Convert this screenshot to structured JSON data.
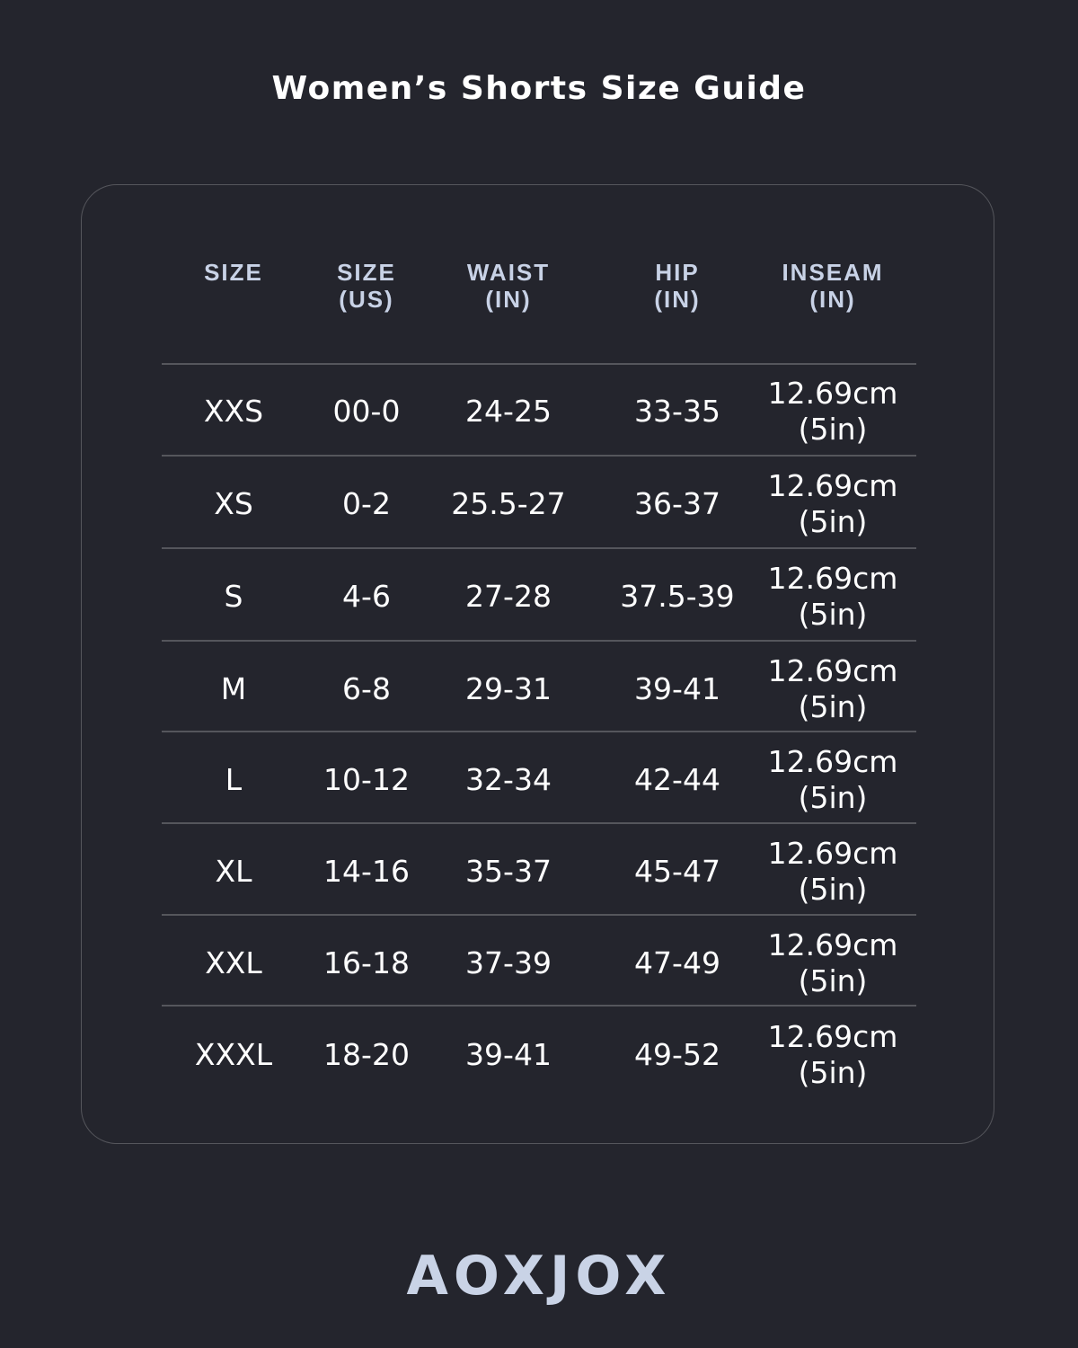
{
  "title": "Women’s Shorts Size Guide",
  "headers": [
    {
      "line1": "SIZE",
      "line2": ""
    },
    {
      "line1": "SIZE",
      "line2": "(US)"
    },
    {
      "line1": "WAIST",
      "line2": "(IN)"
    },
    {
      "line1": "HIP",
      "line2": "(IN)"
    },
    {
      "line1": "INSEAM",
      "line2": "(IN)"
    }
  ],
  "rows": [
    {
      "size": "XXS",
      "us": "00-0",
      "waist": "24-25",
      "hip": "33-35",
      "inseam_cm": "12.69cm",
      "inseam_in": "(5in)"
    },
    {
      "size": "XS",
      "us": "0-2",
      "waist": "25.5-27",
      "hip": "36-37",
      "inseam_cm": "12.69cm",
      "inseam_in": "(5in)"
    },
    {
      "size": "S",
      "us": "4-6",
      "waist": "27-28",
      "hip": "37.5-39",
      "inseam_cm": "12.69cm",
      "inseam_in": "(5in)"
    },
    {
      "size": "M",
      "us": "6-8",
      "waist": "29-31",
      "hip": "39-41",
      "inseam_cm": "12.69cm",
      "inseam_in": "(5in)"
    },
    {
      "size": "L",
      "us": "10-12",
      "waist": "32-34",
      "hip": "42-44",
      "inseam_cm": "12.69cm",
      "inseam_in": "(5in)"
    },
    {
      "size": "XL",
      "us": "14-16",
      "waist": "35-37",
      "hip": "45-47",
      "inseam_cm": "12.69cm",
      "inseam_in": "(5in)"
    },
    {
      "size": "XXL",
      "us": "16-18",
      "waist": "37-39",
      "hip": "47-49",
      "inseam_cm": "12.69cm",
      "inseam_in": "(5in)"
    },
    {
      "size": "XXXL",
      "us": "18-20",
      "waist": "39-41",
      "hip": "49-52",
      "inseam_cm": "12.69cm",
      "inseam_in": "(5in)"
    }
  ],
  "brand": "AOXJOX",
  "colors": {
    "background": "#24252d",
    "header_text": "#c8d2e6",
    "logo": "#c9d3e6",
    "divider": "#55565c"
  }
}
